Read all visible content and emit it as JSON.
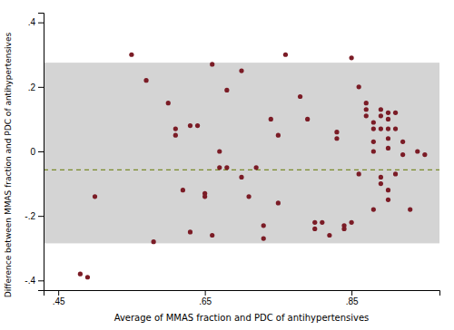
{
  "chart_data": {
    "type": "scatter",
    "xlabel": "Average of MMAS fraction and PDC of antihypertensives",
    "ylabel": "Difference between MMAS fraction and PDC of antihypertensives",
    "xlim": [
      0.43,
      0.97
    ],
    "ylim": [
      -0.43,
      0.43
    ],
    "xticks": [
      {
        "value": 0.45,
        "label": ".45"
      },
      {
        "value": 0.65,
        "label": ".65"
      },
      {
        "value": 0.85,
        "label": ".85"
      }
    ],
    "yticks": [
      {
        "value": -0.4,
        "label": "-.4"
      },
      {
        "value": -0.2,
        "label": "-.2"
      },
      0,
      {
        "value": 0.2,
        "label": ".2"
      },
      {
        "value": 0.4,
        "label": ".4"
      }
    ],
    "color": "#7b1c26",
    "bands": [
      {
        "from": -0.285,
        "to": 0.275,
        "color": "#d4d4d4"
      }
    ],
    "lines": [
      {
        "value": -0.057,
        "color": "#7a8a2a",
        "line_style": "dashed"
      }
    ],
    "x": [
      0.48,
      0.49,
      0.5,
      0.55,
      0.57,
      0.58,
      0.6,
      0.61,
      0.61,
      0.62,
      0.63,
      0.63,
      0.64,
      0.65,
      0.65,
      0.66,
      0.66,
      0.67,
      0.67,
      0.68,
      0.68,
      0.7,
      0.7,
      0.71,
      0.72,
      0.73,
      0.73,
      0.74,
      0.75,
      0.75,
      0.76,
      0.78,
      0.79,
      0.8,
      0.8,
      0.81,
      0.82,
      0.83,
      0.83,
      0.84,
      0.84,
      0.85,
      0.85,
      0.86,
      0.86,
      0.87,
      0.87,
      0.87,
      0.88,
      0.88,
      0.88,
      0.88,
      0.88,
      0.89,
      0.89,
      0.89,
      0.89,
      0.89,
      0.9,
      0.9,
      0.9,
      0.9,
      0.9,
      0.9,
      0.9,
      0.91,
      0.91,
      0.91,
      0.92,
      0.92,
      0.93,
      0.94,
      0.95
    ],
    "y": [
      -0.38,
      -0.39,
      -0.14,
      0.3,
      0.22,
      -0.28,
      0.15,
      0.05,
      0.07,
      -0.12,
      -0.25,
      0.08,
      0.08,
      -0.13,
      -0.14,
      -0.26,
      0.27,
      -0.05,
      0.0,
      0.19,
      -0.05,
      0.25,
      -0.08,
      -0.14,
      -0.05,
      -0.23,
      -0.27,
      0.1,
      0.05,
      -0.16,
      0.3,
      0.17,
      0.1,
      -0.22,
      -0.24,
      -0.22,
      -0.26,
      0.04,
      0.06,
      -0.23,
      -0.24,
      0.29,
      -0.22,
      0.2,
      -0.07,
      0.15,
      0.13,
      0.11,
      0.09,
      0.07,
      0.03,
      0.0,
      -0.18,
      0.13,
      0.11,
      0.07,
      -0.08,
      -0.1,
      0.12,
      0.1,
      0.07,
      0.04,
      0.01,
      -0.12,
      -0.15,
      0.12,
      0.07,
      -0.07,
      0.03,
      -0.01,
      -0.18,
      0.0,
      -0.01
    ]
  }
}
